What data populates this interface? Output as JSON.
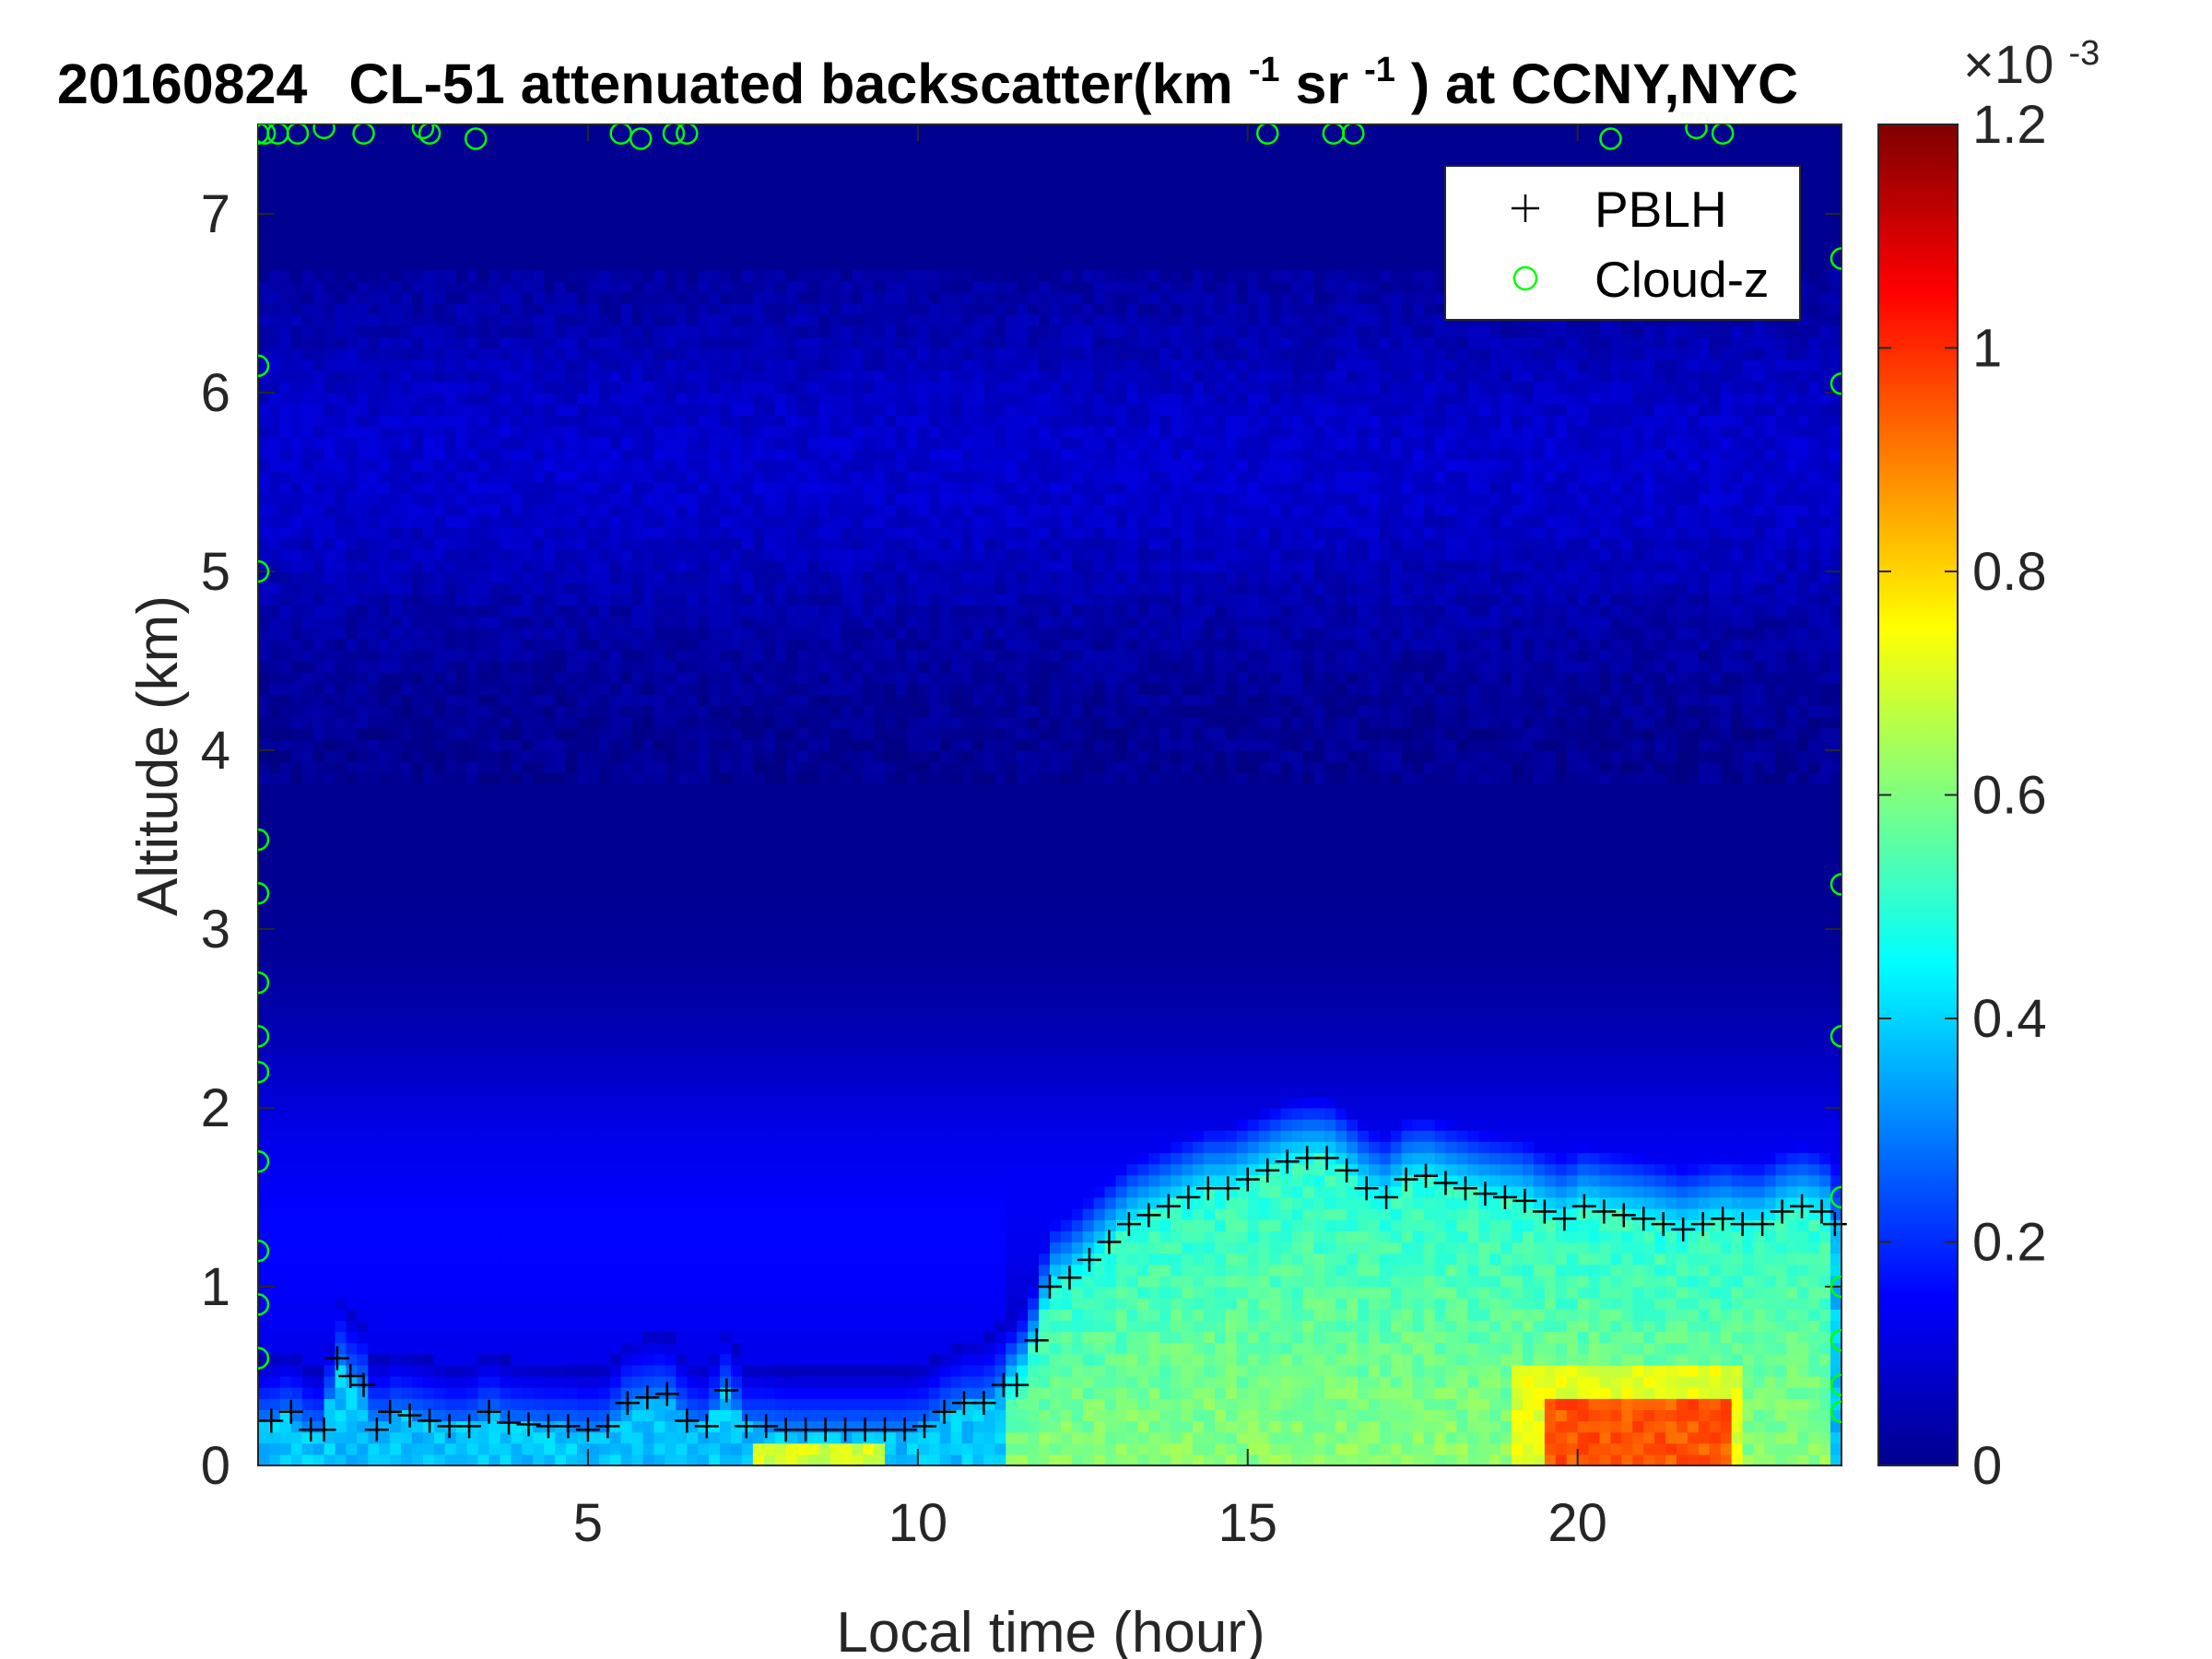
{
  "chart_data": {
    "type": "heatmap",
    "title": {
      "date": "20160824",
      "prefix": "CL-51 attenuated backscatter(km",
      "sup1": "-1",
      "mid": "sr",
      "sup2": "-1",
      "suffix": ") at CCNY,NYC"
    },
    "xlabel": "Local time (hour)",
    "ylabel": "Altitude (km)",
    "xlim": [
      0,
      24
    ],
    "ylim": [
      0,
      7.5
    ],
    "x_ticks": [
      5,
      10,
      15,
      20
    ],
    "y_ticks": [
      0,
      1,
      2,
      3,
      4,
      5,
      6,
      7
    ],
    "colorbar": {
      "colormap": "jet",
      "range": [
        0,
        1.2
      ],
      "exponent_label": "×10",
      "exponent_sup": "-3",
      "ticks": [
        0,
        0.2,
        0.4,
        0.6,
        0.8,
        1,
        1.2
      ]
    },
    "legend": [
      {
        "label": "PBLH",
        "marker": "+",
        "color": "#000000"
      },
      {
        "label": "Cloud-z",
        "marker": "o",
        "color": "#00ff00"
      }
    ],
    "series": [
      {
        "name": "PBLH",
        "x": [
          0.2,
          0.5,
          0.8,
          1.0,
          1.2,
          1.4,
          1.6,
          1.8,
          2.0,
          2.3,
          2.6,
          2.9,
          3.2,
          3.5,
          3.8,
          4.1,
          4.4,
          4.7,
          5.0,
          5.3,
          5.6,
          5.9,
          6.2,
          6.5,
          6.8,
          7.1,
          7.4,
          7.7,
          8.0,
          8.3,
          8.6,
          8.9,
          9.2,
          9.5,
          9.8,
          10.1,
          10.4,
          10.7,
          11.0,
          11.3,
          11.5,
          11.8,
          12.0,
          12.3,
          12.6,
          12.9,
          13.2,
          13.5,
          13.8,
          14.1,
          14.4,
          14.7,
          15.0,
          15.3,
          15.6,
          15.9,
          16.2,
          16.5,
          16.8,
          17.1,
          17.4,
          17.7,
          18.0,
          18.3,
          18.6,
          18.9,
          19.2,
          19.5,
          19.8,
          20.1,
          20.4,
          20.7,
          21.0,
          21.3,
          21.6,
          21.9,
          22.2,
          22.5,
          22.8,
          23.1,
          23.4,
          23.7,
          23.9
        ],
        "y": [
          0.25,
          0.3,
          0.2,
          0.2,
          0.6,
          0.5,
          0.45,
          0.2,
          0.3,
          0.28,
          0.25,
          0.22,
          0.22,
          0.3,
          0.24,
          0.23,
          0.22,
          0.22,
          0.2,
          0.22,
          0.35,
          0.38,
          0.4,
          0.25,
          0.22,
          0.42,
          0.22,
          0.22,
          0.2,
          0.2,
          0.2,
          0.2,
          0.2,
          0.2,
          0.2,
          0.22,
          0.3,
          0.35,
          0.35,
          0.45,
          0.45,
          0.7,
          1.0,
          1.05,
          1.15,
          1.25,
          1.35,
          1.4,
          1.45,
          1.5,
          1.55,
          1.55,
          1.6,
          1.65,
          1.7,
          1.72,
          1.72,
          1.65,
          1.55,
          1.5,
          1.6,
          1.62,
          1.58,
          1.55,
          1.52,
          1.5,
          1.48,
          1.42,
          1.38,
          1.45,
          1.42,
          1.4,
          1.38,
          1.35,
          1.32,
          1.35,
          1.38,
          1.35,
          1.35,
          1.42,
          1.45,
          1.42,
          1.35
        ]
      },
      {
        "name": "Cloud-z",
        "x": [
          0,
          0,
          0,
          0,
          0,
          0,
          0,
          0,
          0,
          0,
          0,
          0,
          0.1,
          0.3,
          0.6,
          1.0,
          1.6,
          2.5,
          2.6,
          3.3,
          5.5,
          5.8,
          6.3,
          6.5,
          15.3,
          16.3,
          16.6,
          20.5,
          21.8,
          22.2,
          24,
          24,
          24,
          24,
          24,
          24,
          24,
          24,
          24
        ],
        "y": [
          7.45,
          6.15,
          5.0,
          3.5,
          3.2,
          2.7,
          2.4,
          2.2,
          1.7,
          1.2,
          0.9,
          0.6,
          7.45,
          7.45,
          7.45,
          7.48,
          7.45,
          7.48,
          7.45,
          7.42,
          7.45,
          7.42,
          7.45,
          7.45,
          7.45,
          7.45,
          7.45,
          7.42,
          7.48,
          7.45,
          6.75,
          6.05,
          3.25,
          2.4,
          1.5,
          1.0,
          0.7,
          0.45,
          0.3
        ]
      }
    ],
    "field_description": {
      "background_value": 0.02,
      "upper_layer_km": [
        4.5,
        6.5
      ],
      "upper_layer_value": 0.12,
      "boundary_layer_peak_value": 0.75,
      "max_value_near_21h": 0.95
    }
  }
}
